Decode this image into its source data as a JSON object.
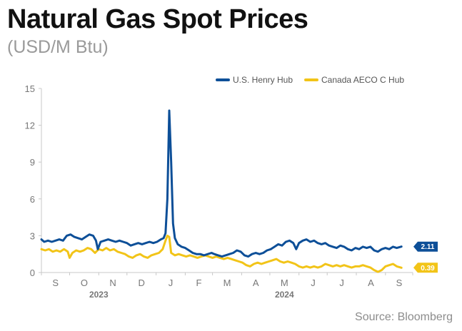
{
  "header": {
    "title": "Natural Gas Spot Prices",
    "subtitle": "(USD/M Btu)"
  },
  "footer": {
    "source": "Source: Bloomberg"
  },
  "chart_data": {
    "type": "line",
    "ylim": [
      0,
      15
    ],
    "yticks": [
      0,
      3,
      6,
      9,
      12,
      15
    ],
    "ytick_labels": [
      "0",
      "3",
      "6",
      "9",
      "12",
      "15"
    ],
    "x_start_label": "2023-09-01",
    "x_end_label": "2024-09-30",
    "month_labels": [
      "S",
      "O",
      "N",
      "D",
      "J",
      "F",
      "M",
      "A",
      "M",
      "J",
      "J",
      "A",
      "S"
    ],
    "year_labels": [
      "2023",
      "2024"
    ],
    "grid": false,
    "legend_position": "top-right",
    "colors": {
      "henry": "#0d4f98",
      "aeco": "#f2c418",
      "axis": "#c8c8c8"
    },
    "series": [
      {
        "name": "U.S. Henry Hub",
        "end_label": "2.11",
        "points": [
          [
            "2023-09-01",
            2.7
          ],
          [
            "2023-09-04",
            2.5
          ],
          [
            "2023-09-08",
            2.6
          ],
          [
            "2023-09-12",
            2.5
          ],
          [
            "2023-09-16",
            2.6
          ],
          [
            "2023-09-20",
            2.7
          ],
          [
            "2023-09-24",
            2.6
          ],
          [
            "2023-09-28",
            3.0
          ],
          [
            "2023-10-02",
            3.1
          ],
          [
            "2023-10-06",
            2.9
          ],
          [
            "2023-10-10",
            2.8
          ],
          [
            "2023-10-14",
            2.7
          ],
          [
            "2023-10-18",
            2.9
          ],
          [
            "2023-10-22",
            3.1
          ],
          [
            "2023-10-26",
            3.0
          ],
          [
            "2023-10-29",
            2.6
          ],
          [
            "2023-10-31",
            1.9
          ],
          [
            "2023-11-03",
            2.5
          ],
          [
            "2023-11-07",
            2.6
          ],
          [
            "2023-11-11",
            2.7
          ],
          [
            "2023-11-15",
            2.6
          ],
          [
            "2023-11-19",
            2.5
          ],
          [
            "2023-11-23",
            2.6
          ],
          [
            "2023-11-27",
            2.5
          ],
          [
            "2023-12-01",
            2.4
          ],
          [
            "2023-12-05",
            2.2
          ],
          [
            "2023-12-09",
            2.3
          ],
          [
            "2023-12-13",
            2.4
          ],
          [
            "2023-12-17",
            2.3
          ],
          [
            "2023-12-21",
            2.4
          ],
          [
            "2023-12-25",
            2.5
          ],
          [
            "2023-12-29",
            2.4
          ],
          [
            "2024-01-02",
            2.5
          ],
          [
            "2024-01-06",
            2.7
          ],
          [
            "2024-01-09",
            2.8
          ],
          [
            "2024-01-11",
            3.2
          ],
          [
            "2024-01-13",
            6.0
          ],
          [
            "2024-01-15",
            13.2
          ],
          [
            "2024-01-17",
            9.0
          ],
          [
            "2024-01-19",
            4.0
          ],
          [
            "2024-01-21",
            2.8
          ],
          [
            "2024-01-24",
            2.3
          ],
          [
            "2024-01-28",
            2.1
          ],
          [
            "2024-02-01",
            2.0
          ],
          [
            "2024-02-05",
            1.8
          ],
          [
            "2024-02-09",
            1.6
          ],
          [
            "2024-02-13",
            1.5
          ],
          [
            "2024-02-17",
            1.5
          ],
          [
            "2024-02-21",
            1.4
          ],
          [
            "2024-02-25",
            1.5
          ],
          [
            "2024-02-29",
            1.6
          ],
          [
            "2024-03-03",
            1.5
          ],
          [
            "2024-03-07",
            1.4
          ],
          [
            "2024-03-11",
            1.3
          ],
          [
            "2024-03-15",
            1.4
          ],
          [
            "2024-03-19",
            1.5
          ],
          [
            "2024-03-23",
            1.6
          ],
          [
            "2024-03-27",
            1.8
          ],
          [
            "2024-03-31",
            1.7
          ],
          [
            "2024-04-04",
            1.4
          ],
          [
            "2024-04-08",
            1.3
          ],
          [
            "2024-04-12",
            1.5
          ],
          [
            "2024-04-16",
            1.6
          ],
          [
            "2024-04-20",
            1.5
          ],
          [
            "2024-04-24",
            1.6
          ],
          [
            "2024-04-28",
            1.8
          ],
          [
            "2024-05-02",
            1.9
          ],
          [
            "2024-05-06",
            2.1
          ],
          [
            "2024-05-10",
            2.3
          ],
          [
            "2024-05-14",
            2.2
          ],
          [
            "2024-05-18",
            2.5
          ],
          [
            "2024-05-22",
            2.6
          ],
          [
            "2024-05-26",
            2.4
          ],
          [
            "2024-05-29",
            1.9
          ],
          [
            "2024-06-01",
            2.4
          ],
          [
            "2024-06-05",
            2.6
          ],
          [
            "2024-06-09",
            2.7
          ],
          [
            "2024-06-13",
            2.5
          ],
          [
            "2024-06-17",
            2.6
          ],
          [
            "2024-06-21",
            2.4
          ],
          [
            "2024-06-25",
            2.3
          ],
          [
            "2024-06-29",
            2.4
          ],
          [
            "2024-07-03",
            2.2
          ],
          [
            "2024-07-07",
            2.1
          ],
          [
            "2024-07-11",
            2.0
          ],
          [
            "2024-07-15",
            2.2
          ],
          [
            "2024-07-19",
            2.1
          ],
          [
            "2024-07-23",
            1.9
          ],
          [
            "2024-07-27",
            1.8
          ],
          [
            "2024-07-31",
            2.0
          ],
          [
            "2024-08-04",
            1.9
          ],
          [
            "2024-08-08",
            2.1
          ],
          [
            "2024-08-12",
            2.0
          ],
          [
            "2024-08-16",
            2.1
          ],
          [
            "2024-08-20",
            1.8
          ],
          [
            "2024-08-24",
            1.7
          ],
          [
            "2024-08-28",
            1.9
          ],
          [
            "2024-09-01",
            2.0
          ],
          [
            "2024-09-05",
            1.9
          ],
          [
            "2024-09-09",
            2.1
          ],
          [
            "2024-09-13",
            2.0
          ],
          [
            "2024-09-18",
            2.11
          ]
        ]
      },
      {
        "name": "Canada AECO C Hub",
        "end_label": "0.39",
        "points": [
          [
            "2023-09-01",
            1.9
          ],
          [
            "2023-09-05",
            1.8
          ],
          [
            "2023-09-09",
            1.9
          ],
          [
            "2023-09-13",
            1.7
          ],
          [
            "2023-09-17",
            1.8
          ],
          [
            "2023-09-21",
            1.7
          ],
          [
            "2023-09-25",
            1.9
          ],
          [
            "2023-09-29",
            1.7
          ],
          [
            "2023-10-01",
            1.2
          ],
          [
            "2023-10-04",
            1.6
          ],
          [
            "2023-10-08",
            1.8
          ],
          [
            "2023-10-12",
            1.7
          ],
          [
            "2023-10-16",
            1.8
          ],
          [
            "2023-10-20",
            2.0
          ],
          [
            "2023-10-24",
            1.9
          ],
          [
            "2023-10-28",
            1.6
          ],
          [
            "2023-11-01",
            1.9
          ],
          [
            "2023-11-05",
            1.8
          ],
          [
            "2023-11-09",
            2.0
          ],
          [
            "2023-11-13",
            1.8
          ],
          [
            "2023-11-17",
            1.9
          ],
          [
            "2023-11-21",
            1.7
          ],
          [
            "2023-11-25",
            1.6
          ],
          [
            "2023-11-29",
            1.5
          ],
          [
            "2023-12-03",
            1.3
          ],
          [
            "2023-12-07",
            1.2
          ],
          [
            "2023-12-11",
            1.4
          ],
          [
            "2023-12-15",
            1.5
          ],
          [
            "2023-12-19",
            1.3
          ],
          [
            "2023-12-23",
            1.2
          ],
          [
            "2023-12-27",
            1.4
          ],
          [
            "2023-12-31",
            1.5
          ],
          [
            "2024-01-04",
            1.6
          ],
          [
            "2024-01-08",
            1.9
          ],
          [
            "2024-01-11",
            2.6
          ],
          [
            "2024-01-13",
            3.0
          ],
          [
            "2024-01-15",
            2.9
          ],
          [
            "2024-01-17",
            1.6
          ],
          [
            "2024-01-21",
            1.4
          ],
          [
            "2024-01-25",
            1.5
          ],
          [
            "2024-01-29",
            1.4
          ],
          [
            "2024-02-02",
            1.3
          ],
          [
            "2024-02-06",
            1.4
          ],
          [
            "2024-02-10",
            1.3
          ],
          [
            "2024-02-14",
            1.2
          ],
          [
            "2024-02-18",
            1.3
          ],
          [
            "2024-02-22",
            1.4
          ],
          [
            "2024-02-26",
            1.3
          ],
          [
            "2024-03-01",
            1.2
          ],
          [
            "2024-03-05",
            1.3
          ],
          [
            "2024-03-09",
            1.2
          ],
          [
            "2024-03-13",
            1.1
          ],
          [
            "2024-03-17",
            1.2
          ],
          [
            "2024-03-21",
            1.1
          ],
          [
            "2024-03-25",
            1.0
          ],
          [
            "2024-03-29",
            0.9
          ],
          [
            "2024-04-02",
            0.8
          ],
          [
            "2024-04-06",
            0.6
          ],
          [
            "2024-04-10",
            0.5
          ],
          [
            "2024-04-14",
            0.7
          ],
          [
            "2024-04-18",
            0.8
          ],
          [
            "2024-04-22",
            0.7
          ],
          [
            "2024-04-26",
            0.8
          ],
          [
            "2024-04-30",
            0.9
          ],
          [
            "2024-05-04",
            1.0
          ],
          [
            "2024-05-08",
            1.1
          ],
          [
            "2024-05-12",
            0.9
          ],
          [
            "2024-05-16",
            0.8
          ],
          [
            "2024-05-20",
            0.9
          ],
          [
            "2024-05-24",
            0.8
          ],
          [
            "2024-05-28",
            0.7
          ],
          [
            "2024-06-01",
            0.5
          ],
          [
            "2024-06-05",
            0.4
          ],
          [
            "2024-06-09",
            0.5
          ],
          [
            "2024-06-13",
            0.4
          ],
          [
            "2024-06-17",
            0.5
          ],
          [
            "2024-06-21",
            0.4
          ],
          [
            "2024-06-25",
            0.5
          ],
          [
            "2024-06-29",
            0.7
          ],
          [
            "2024-07-03",
            0.6
          ],
          [
            "2024-07-07",
            0.5
          ],
          [
            "2024-07-11",
            0.6
          ],
          [
            "2024-07-15",
            0.5
          ],
          [
            "2024-07-19",
            0.6
          ],
          [
            "2024-07-23",
            0.5
          ],
          [
            "2024-07-27",
            0.4
          ],
          [
            "2024-07-31",
            0.5
          ],
          [
            "2024-08-04",
            0.5
          ],
          [
            "2024-08-08",
            0.6
          ],
          [
            "2024-08-12",
            0.5
          ],
          [
            "2024-08-16",
            0.4
          ],
          [
            "2024-08-20",
            0.2
          ],
          [
            "2024-08-24",
            0.05
          ],
          [
            "2024-08-28",
            0.2
          ],
          [
            "2024-09-01",
            0.5
          ],
          [
            "2024-09-05",
            0.6
          ],
          [
            "2024-09-09",
            0.7
          ],
          [
            "2024-09-13",
            0.5
          ],
          [
            "2024-09-18",
            0.39
          ]
        ]
      }
    ]
  }
}
